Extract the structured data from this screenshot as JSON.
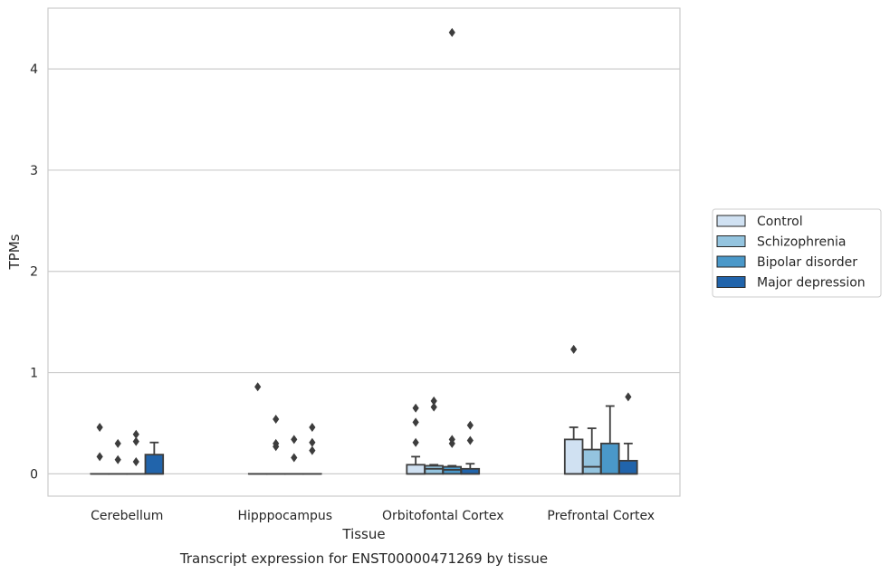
{
  "chart_data": {
    "type": "box",
    "title": "",
    "caption": "Transcript expression for ENST00000471269 by tissue",
    "xlabel": "Tissue",
    "ylabel": "TPMs",
    "ylim": [
      -0.22,
      4.6
    ],
    "yticks": [
      0,
      1,
      2,
      3,
      4
    ],
    "grid": "horizontal",
    "legend_position": "right",
    "categories": [
      "Cerebellum",
      "Hipppocampus",
      "Orbitofontal Cortex",
      "Prefrontal Cortex"
    ],
    "series": [
      {
        "name": "Control",
        "color": "#d0e1f2",
        "boxes": [
          {
            "q1": 0,
            "median": 0,
            "q3": 0,
            "whisker_low": 0,
            "whisker_high": 0,
            "outliers": [
              0.46,
              0.17
            ]
          },
          {
            "q1": 0,
            "median": 0,
            "q3": 0,
            "whisker_low": 0,
            "whisker_high": 0,
            "outliers": [
              0.86
            ]
          },
          {
            "q1": 0,
            "median": 0,
            "q3": 0.09,
            "whisker_low": 0,
            "whisker_high": 0.17,
            "outliers": [
              0.65,
              0.51,
              0.31
            ]
          },
          {
            "q1": 0,
            "median": 0,
            "q3": 0.34,
            "whisker_low": 0,
            "whisker_high": 0.46,
            "outliers": [
              1.23
            ]
          }
        ]
      },
      {
        "name": "Schizophrenia",
        "color": "#94c4df",
        "boxes": [
          {
            "q1": 0,
            "median": 0,
            "q3": 0,
            "whisker_low": 0,
            "whisker_high": 0,
            "outliers": [
              0.3,
              0.14
            ]
          },
          {
            "q1": 0,
            "median": 0,
            "q3": 0,
            "whisker_low": 0,
            "whisker_high": 0,
            "outliers": [
              0.54,
              0.3,
              0.27
            ]
          },
          {
            "q1": 0,
            "median": 0.05,
            "q3": 0.08,
            "whisker_low": 0,
            "whisker_high": 0.09,
            "outliers": [
              0.72,
              0.66
            ]
          },
          {
            "q1": 0,
            "median": 0.07,
            "q3": 0.24,
            "whisker_low": 0,
            "whisker_high": 0.45,
            "outliers": []
          }
        ]
      },
      {
        "name": "Bipolar disorder",
        "color": "#4a98c9",
        "boxes": [
          {
            "q1": 0,
            "median": 0,
            "q3": 0,
            "whisker_low": 0,
            "whisker_high": 0,
            "outliers": [
              0.39,
              0.32,
              0.12
            ]
          },
          {
            "q1": 0,
            "median": 0,
            "q3": 0,
            "whisker_low": 0,
            "whisker_high": 0,
            "outliers": [
              0.34,
              0.16
            ]
          },
          {
            "q1": 0,
            "median": 0.04,
            "q3": 0.07,
            "whisker_low": 0,
            "whisker_high": 0.08,
            "outliers": [
              4.36,
              0.34,
              0.3
            ]
          },
          {
            "q1": 0,
            "median": 0,
            "q3": 0.3,
            "whisker_low": 0,
            "whisker_high": 0.67,
            "outliers": []
          }
        ]
      },
      {
        "name": "Major depression",
        "color": "#2164ab",
        "boxes": [
          {
            "q1": 0,
            "median": 0,
            "q3": 0.19,
            "whisker_low": 0,
            "whisker_high": 0.31,
            "outliers": []
          },
          {
            "q1": 0,
            "median": 0,
            "q3": 0,
            "whisker_low": 0,
            "whisker_high": 0,
            "outliers": [
              0.46,
              0.31,
              0.23
            ]
          },
          {
            "q1": 0,
            "median": 0,
            "q3": 0.05,
            "whisker_low": 0,
            "whisker_high": 0.1,
            "outliers": [
              0.48,
              0.33
            ]
          },
          {
            "q1": 0,
            "median": 0,
            "q3": 0.13,
            "whisker_low": 0,
            "whisker_high": 0.3,
            "outliers": [
              0.76
            ]
          }
        ]
      }
    ]
  }
}
